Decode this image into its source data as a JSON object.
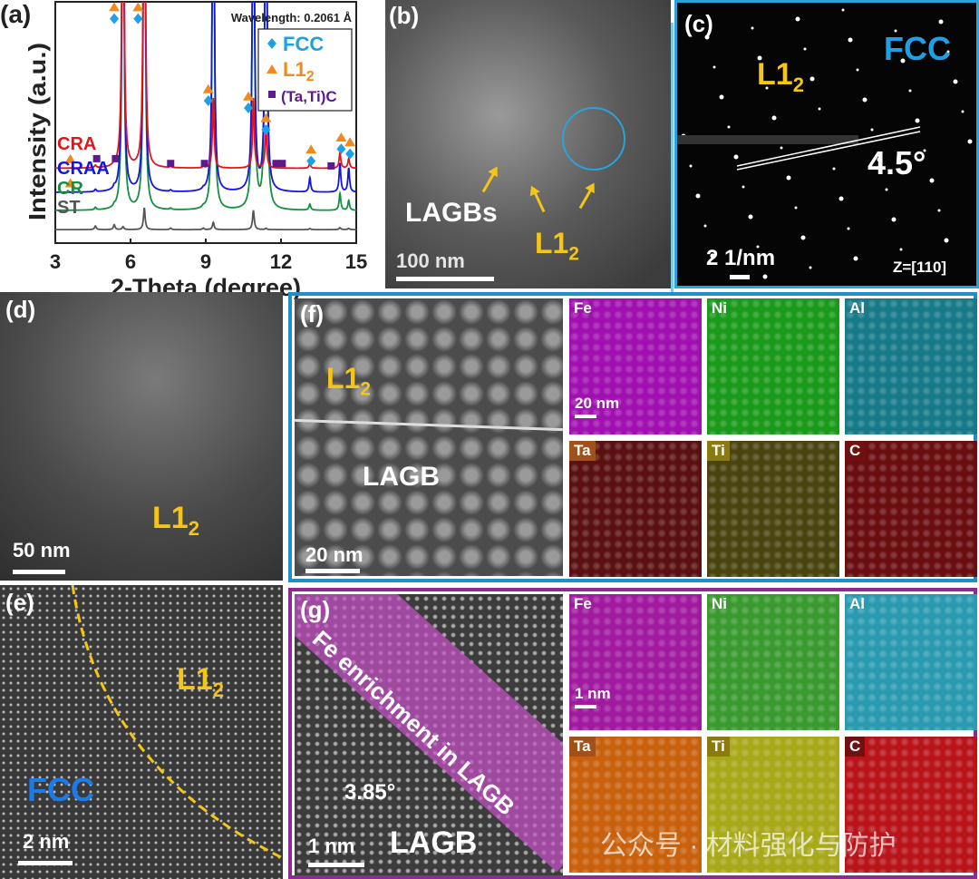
{
  "panels": {
    "a": {
      "label": "(a)"
    },
    "b": {
      "label": "(b)",
      "lagbs": "LAGBs",
      "l12": "L1",
      "sub": "2",
      "scale": "100 nm"
    },
    "c": {
      "label": "(c)",
      "fcc": "FCC",
      "l12": "L1",
      "sub": "2",
      "angle": "4.5°",
      "scale": "2 1/nm",
      "zone": "Z=[110]"
    },
    "d": {
      "label": "(d)",
      "l12": "L1",
      "sub": "2",
      "scale": "50 nm"
    },
    "e": {
      "label": "(e)",
      "l12": "L1",
      "sub": "2",
      "fcc": "FCC",
      "scale": "2 nm"
    },
    "f": {
      "label": "(f)",
      "l12": "L1",
      "sub": "2",
      "lagb": "LAGB",
      "scale": "20 nm",
      "map_scale": "20 nm",
      "maps": [
        "Fe",
        "Ni",
        "Al",
        "Ta",
        "Ti",
        "C"
      ]
    },
    "g": {
      "label": "(g)",
      "enrich": "Fe enrichment in LAGB",
      "angle": "3.85°",
      "lagb": "LAGB",
      "scale": "1 nm",
      "map_scale": "1 nm",
      "maps": [
        "Fe",
        "Ni",
        "Al",
        "Ta",
        "Ti",
        "C"
      ]
    }
  },
  "colors": {
    "panel_f_border": "#1f8fc9",
    "panel_g_border": "#8e2a94",
    "fcc_blue": "#1ea0e6",
    "l12_orange": "#f08a1c",
    "carbide_purple": "#5b1a8f"
  },
  "watermark": "公众号 · 材料强化与防护",
  "chart_data": {
    "type": "line",
    "xlabel": "2-Theta (degree)",
    "ylabel": "Intensity (a.u.)",
    "annotation": "Wavelength: 0.2061 Å",
    "xlim": [
      3,
      15
    ],
    "ylim": [
      0,
      100
    ],
    "xticks": [
      "3",
      "6",
      "9",
      "12",
      "15"
    ],
    "legend": {
      "placement": "top-right",
      "entries": [
        {
          "marker": "diamond",
          "label": "FCC",
          "color": "#1ea0e6"
        },
        {
          "marker": "triangle",
          "label": "L1",
          "sub": "2",
          "color": "#f08a1c"
        },
        {
          "marker": "square",
          "label": "(Ta,Ti)C",
          "color": "#5b1a8f"
        }
      ]
    },
    "series": [
      {
        "name": "CRA",
        "color": "#e5141b",
        "baseline": 31,
        "peaks": [
          [
            4.6,
            1
          ],
          [
            5.35,
            1
          ],
          [
            5.7,
            200
          ],
          [
            6.55,
            200
          ],
          [
            7.6,
            0.6
          ],
          [
            8.9,
            0.6
          ],
          [
            9.3,
            29
          ],
          [
            10.9,
            29
          ],
          [
            11.4,
            17
          ],
          [
            13.15,
            2
          ],
          [
            14.35,
            6.5
          ],
          [
            14.7,
            4
          ]
        ]
      },
      {
        "name": "CRAA",
        "color": "#1515e0",
        "baseline": 21,
        "peaks": [
          [
            4.6,
            1
          ],
          [
            5.35,
            1
          ],
          [
            5.7,
            200
          ],
          [
            6.55,
            200
          ],
          [
            7.6,
            0.6
          ],
          [
            8.9,
            0.6
          ],
          [
            9.3,
            200
          ],
          [
            10.9,
            200
          ],
          [
            11.4,
            200
          ],
          [
            13.15,
            6
          ],
          [
            14.35,
            12
          ],
          [
            14.7,
            10
          ]
        ]
      },
      {
        "name": "CR",
        "color": "#149040",
        "baseline": 13.5,
        "peaks": [
          [
            4.6,
            1
          ],
          [
            5.35,
            0.8
          ],
          [
            5.7,
            200
          ],
          [
            6.55,
            200
          ],
          [
            7.6,
            0.6
          ],
          [
            8.9,
            0.6
          ],
          [
            9.3,
            200
          ],
          [
            10.9,
            200
          ],
          [
            11.4,
            200
          ],
          [
            13.15,
            2.5
          ],
          [
            14.35,
            7
          ],
          [
            14.7,
            4
          ]
        ]
      },
      {
        "name": "ST",
        "color": "#555555",
        "baseline": 5.6,
        "peaks": [
          [
            4.6,
            1.5
          ],
          [
            5.35,
            2
          ],
          [
            5.7,
            1.2
          ],
          [
            6.55,
            9
          ],
          [
            7.6,
            0.6
          ],
          [
            8.9,
            0.6
          ],
          [
            9.3,
            3
          ],
          [
            10.9,
            8
          ],
          [
            11.4,
            0.5
          ],
          [
            13.15,
            0.4
          ],
          [
            14.35,
            0.8
          ],
          [
            14.7,
            0.5
          ]
        ]
      }
    ],
    "markers": [
      {
        "type": "triangle",
        "x": 5.35,
        "y": 98
      },
      {
        "type": "diamond",
        "x": 5.35,
        "y": 93
      },
      {
        "type": "triangle",
        "x": 6.3,
        "y": 98
      },
      {
        "type": "diamond",
        "x": 6.3,
        "y": 93
      },
      {
        "type": "triangle",
        "x": 9.1,
        "y": 64
      },
      {
        "type": "diamond",
        "x": 9.1,
        "y": 59
      },
      {
        "type": "triangle",
        "x": 10.7,
        "y": 61
      },
      {
        "type": "diamond",
        "x": 10.7,
        "y": 56
      },
      {
        "type": "triangle",
        "x": 11.4,
        "y": 52
      },
      {
        "type": "diamond",
        "x": 11.4,
        "y": 47
      },
      {
        "type": "triangle",
        "x": 13.2,
        "y": 39
      },
      {
        "type": "diamond",
        "x": 13.2,
        "y": 34
      },
      {
        "type": "triangle",
        "x": 14.4,
        "y": 44
      },
      {
        "type": "diamond",
        "x": 14.4,
        "y": 39
      },
      {
        "type": "triangle",
        "x": 14.75,
        "y": 42
      },
      {
        "type": "diamond",
        "x": 14.75,
        "y": 37
      },
      {
        "type": "triangle",
        "x": 3.6,
        "y": 35
      },
      {
        "type": "triangle",
        "x": 3.6,
        "y": 25
      },
      {
        "type": "square",
        "x": 4.65,
        "y": 35
      },
      {
        "type": "square",
        "x": 5.4,
        "y": 35
      },
      {
        "type": "square",
        "x": 7.6,
        "y": 33
      },
      {
        "type": "square",
        "x": 8.95,
        "y": 33
      },
      {
        "type": "square",
        "x": 11.8,
        "y": 33
      },
      {
        "type": "square",
        "x": 12.05,
        "y": 33
      },
      {
        "type": "square",
        "x": 14.0,
        "y": 32
      }
    ]
  }
}
